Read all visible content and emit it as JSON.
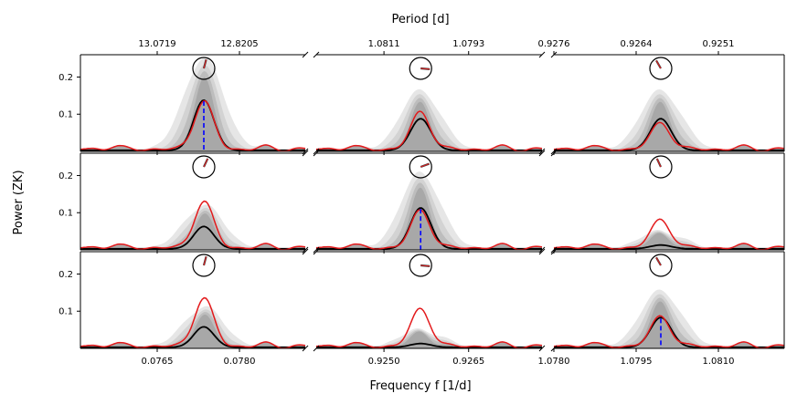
{
  "chart_data": {
    "type": "line",
    "xlabel": "Frequency f [1/d]",
    "ylabel": "Power (ZK)",
    "top_xlabel": "Period [d]",
    "layout": "3x3 grid, columns share x-axis, broken axes between columns",
    "ylim": [
      0,
      0.26
    ],
    "yticks": [
      0.1,
      0.2
    ],
    "ytick_labels": [
      "0.1",
      "0.2"
    ],
    "colors": {
      "observed": "#e31a1c",
      "median": "#000000",
      "envelope": "#8c8c8c",
      "marker": "#0000ff"
    },
    "columns": [
      {
        "xlim": [
          0.0751,
          0.0792
        ],
        "bottom_ticks": [
          0.0765,
          0.078
        ],
        "bottom_tick_labels": [
          "0.0765",
          "0.0780"
        ],
        "top_ticks": [
          0.0765,
          0.078
        ],
        "top_tick_labels": [
          "13.0719",
          "12.8205"
        ],
        "peak": 0.07735
      },
      {
        "xlim": [
          0.9238,
          0.9278
        ],
        "bottom_ticks": [
          0.925,
          0.9265
        ],
        "bottom_tick_labels": [
          "0.9250",
          "0.9265"
        ],
        "top_ticks": [
          0.925,
          0.9265
        ],
        "top_tick_labels": [
          "1.0811",
          "1.0793"
        ],
        "peak": 0.92565
      },
      {
        "xlim": [
          1.078,
          1.0822
        ],
        "bottom_ticks": [
          1.078,
          1.0795,
          1.081
        ],
        "bottom_tick_labels": [
          "1.0780",
          "1.0795",
          "1.0810"
        ],
        "top_ticks": [
          1.078,
          1.0795,
          1.081
        ],
        "top_tick_labels": [
          "0.9276",
          "0.9264",
          "0.9251"
        ],
        "peak": 1.07995
      }
    ],
    "panels": [
      {
        "row": 0,
        "col": 0,
        "observed_peak": 0.13,
        "median_peak": 0.135,
        "marker": true,
        "needle_deg": 75
      },
      {
        "row": 0,
        "col": 1,
        "observed_peak": 0.1,
        "median_peak": 0.085,
        "marker": false,
        "needle_deg": -5
      },
      {
        "row": 0,
        "col": 2,
        "observed_peak": 0.07,
        "median_peak": 0.085,
        "marker": false,
        "needle_deg": 120
      },
      {
        "row": 1,
        "col": 0,
        "observed_peak": 0.125,
        "median_peak": 0.06,
        "marker": false,
        "needle_deg": 65
      },
      {
        "row": 1,
        "col": 1,
        "observed_peak": 0.1,
        "median_peak": 0.11,
        "marker": true,
        "needle_deg": 20
      },
      {
        "row": 1,
        "col": 2,
        "observed_peak": 0.075,
        "median_peak": 0.01,
        "marker": false,
        "needle_deg": 115
      },
      {
        "row": 2,
        "col": 0,
        "observed_peak": 0.13,
        "median_peak": 0.055,
        "marker": false,
        "needle_deg": 75
      },
      {
        "row": 2,
        "col": 1,
        "observed_peak": 0.1,
        "median_peak": 0.01,
        "marker": false,
        "needle_deg": -5
      },
      {
        "row": 2,
        "col": 2,
        "observed_peak": 0.08,
        "median_peak": 0.08,
        "marker": true,
        "needle_deg": 120
      }
    ]
  }
}
